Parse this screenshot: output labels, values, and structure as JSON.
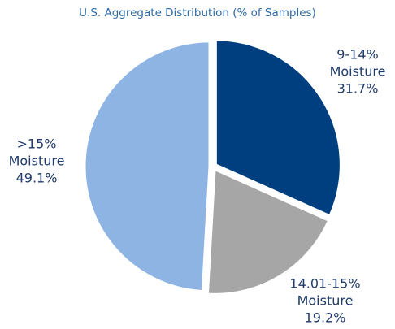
{
  "chart_data": {
    "type": "pie",
    "title": "U.S. Aggregate Distribution (% of Samples)",
    "categories": [
      "9-14% Moisture",
      "14.01-15% Moisture",
      ">15% Moisture"
    ],
    "values": [
      31.7,
      19.2,
      49.1
    ],
    "value_labels": [
      "31.7%",
      "19.2%",
      "49.1%"
    ],
    "colors": [
      "#003f7f",
      "#a6a6a6",
      "#8eb4e3"
    ]
  }
}
